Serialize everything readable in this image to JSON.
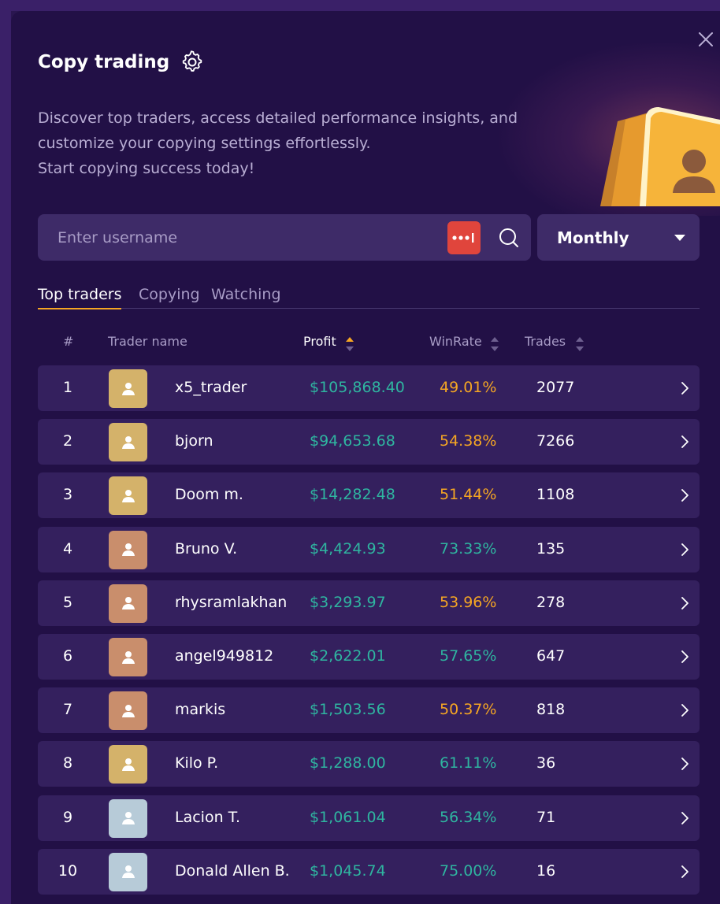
{
  "header": {
    "title": "Copy trading",
    "description": [
      "Discover top traders, access detailed performance insights, and",
      "customize your copying settings effortlessly.",
      "Start copying success today!"
    ]
  },
  "search": {
    "placeholder": "Enter username",
    "value": ""
  },
  "period_dropdown": {
    "selected": "Monthly"
  },
  "tabs": [
    {
      "label": "Top traders",
      "active": true
    },
    {
      "label": "Copying",
      "active": false
    },
    {
      "label": "Watching",
      "active": false
    }
  ],
  "table": {
    "columns": {
      "rank": "#",
      "trader_name": "Trader name",
      "profit": "Profit",
      "winrate": "WinRate",
      "trades": "Trades"
    },
    "rows": [
      {
        "rank": "1",
        "name": "x5_trader",
        "profit": "$105,868.40",
        "winrate": "49.01%",
        "trades": "2077",
        "avatar_color": "#d4b26a",
        "winrate_color": "#f5a623"
      },
      {
        "rank": "2",
        "name": "bjorn",
        "profit": "$94,653.68",
        "winrate": "54.38%",
        "trades": "7266",
        "avatar_color": "#d4b26a",
        "winrate_color": "#f5a623"
      },
      {
        "rank": "3",
        "name": "Doom m.",
        "profit": "$14,282.48",
        "winrate": "51.44%",
        "trades": "1108",
        "avatar_color": "#d4b26a",
        "winrate_color": "#f5a623"
      },
      {
        "rank": "4",
        "name": "Bruno V.",
        "profit": "$4,424.93",
        "winrate": "73.33%",
        "trades": "135",
        "avatar_color": "#c98e6c",
        "winrate_color": "#2fb5a0"
      },
      {
        "rank": "5",
        "name": "rhysramlakhan",
        "profit": "$3,293.97",
        "winrate": "53.96%",
        "trades": "278",
        "avatar_color": "#c98e6c",
        "winrate_color": "#f5a623"
      },
      {
        "rank": "6",
        "name": "angel949812",
        "profit": "$2,622.01",
        "winrate": "57.65%",
        "trades": "647",
        "avatar_color": "#c98e6c",
        "winrate_color": "#2fb5a0"
      },
      {
        "rank": "7",
        "name": "markis",
        "profit": "$1,503.56",
        "winrate": "50.37%",
        "trades": "818",
        "avatar_color": "#c98e6c",
        "winrate_color": "#f5a623"
      },
      {
        "rank": "8",
        "name": "Kilo P.",
        "profit": "$1,288.00",
        "winrate": "61.11%",
        "trades": "36",
        "avatar_color": "#d4b26a",
        "winrate_color": "#2fb5a0"
      },
      {
        "rank": "9",
        "name": "Lacion T.",
        "profit": "$1,061.04",
        "winrate": "56.34%",
        "trades": "71",
        "avatar_color": "#b7cbd8",
        "winrate_color": "#2fb5a0"
      },
      {
        "rank": "10",
        "name": "Donald Allen B.",
        "profit": "$1,045.74",
        "winrate": "75.00%",
        "trades": "16",
        "avatar_color": "#b7cbd8",
        "winrate_color": "#2fb5a0"
      }
    ]
  },
  "colors": {
    "accent": "#f5a623",
    "profit": "#2fb5a0",
    "password_manager_icon": "#e0453c"
  },
  "icons": {
    "close": "close-icon",
    "settings": "gear-icon",
    "search": "search-icon",
    "password_manager": "password-manager-icon",
    "row_open": "chevron-right-icon"
  }
}
